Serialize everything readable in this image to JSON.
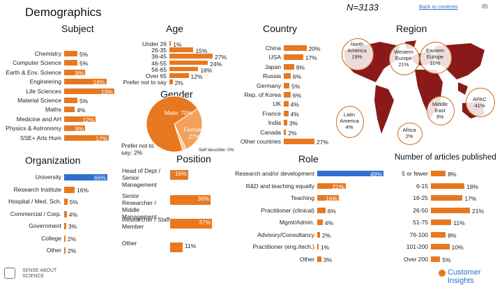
{
  "header": {
    "title": "Demographics",
    "n_label": "N=3133",
    "back_link": "Back to contents",
    "page_number": "85"
  },
  "colors": {
    "bar": "#e8781f",
    "highlight": "#2f6fd0",
    "map_land": "#8a1a1a",
    "pie_main": "#e8781f",
    "pie_secondary": "#f3a05a"
  },
  "chart_data": [
    {
      "id": "subject",
      "type": "bar",
      "orientation": "horizontal",
      "title": "Subject",
      "categories": [
        "Chemistry",
        "Computer Science",
        "Earth & Env. Science",
        "Engineering",
        "Life Sciences",
        "Material Science",
        "Maths",
        "Medicine and AH",
        "Physics & Astronomy",
        "SSE+ Arts Hum"
      ],
      "values": [
        5,
        5,
        8,
        16,
        19,
        5,
        4,
        12,
        8,
        17
      ],
      "labels": [
        "5%",
        "5%",
        "8%",
        "16%",
        "19%",
        "5%",
        "4%",
        "12%",
        "8%",
        "17%"
      ],
      "highlight": -1
    },
    {
      "id": "age",
      "type": "bar",
      "orientation": "horizontal",
      "title": "Age",
      "categories": [
        "Under 26",
        "26-35",
        "36-45",
        "46-55",
        "56-65",
        "Over 65",
        "Prefer not to say"
      ],
      "values": [
        1,
        15,
        27,
        24,
        18,
        12,
        2
      ],
      "labels": [
        "1%",
        "15%",
        "27%",
        "24%",
        "18%",
        "12%",
        "2%"
      ],
      "highlight": -1
    },
    {
      "id": "gender",
      "type": "pie",
      "title": "Gender",
      "slices": [
        {
          "name": "Male",
          "value": 70,
          "label": "Male: 70%"
        },
        {
          "name": "Female",
          "value": 27,
          "label": "Female: 27%"
        },
        {
          "name": "Prefer not to say",
          "value": 2,
          "label": "Prefer not to say: 2%"
        },
        {
          "name": "Self-describe",
          "value": 0,
          "label": "Self describe: 0%"
        }
      ]
    },
    {
      "id": "country",
      "type": "bar",
      "orientation": "horizontal",
      "title": "Country",
      "categories": [
        "China",
        "USA",
        "Japan",
        "Russia",
        "Germany",
        "Rep. of Korea",
        "UK",
        "France",
        "India",
        "Canada",
        "Other countries"
      ],
      "values": [
        20,
        17,
        9,
        6,
        5,
        6,
        4,
        4,
        3,
        2,
        27
      ],
      "labels": [
        "20%",
        "17%",
        "9%",
        "6%",
        "5%",
        "6%",
        "4%",
        "4%",
        "3%",
        "2%",
        "27%"
      ],
      "highlight": -1
    },
    {
      "id": "region",
      "type": "map",
      "title": "Region",
      "regions": [
        {
          "name": "North America",
          "label": "North America",
          "value": "19%"
        },
        {
          "name": "Western Europe",
          "label": "Western Europe",
          "value": "21%"
        },
        {
          "name": "Eastern Europe",
          "label": "Eastern Europe",
          "value": "10%"
        },
        {
          "name": "Middle East",
          "label": "Middle East",
          "value": "3%"
        },
        {
          "name": "APAC",
          "label": "APAC",
          "value": "41%"
        },
        {
          "name": "Latin America",
          "label": "Latin America",
          "value": "4%"
        },
        {
          "name": "Africa",
          "label": "Africa",
          "value": "2%"
        }
      ]
    },
    {
      "id": "organization",
      "type": "bar",
      "orientation": "horizontal",
      "title": "Organization",
      "categories": [
        "University",
        "Research Institute",
        "Hospital / Med. Sch.",
        "Commercial / Corp.",
        "Government",
        "College",
        "Other"
      ],
      "values": [
        66,
        16,
        5,
        4,
        3,
        2,
        2
      ],
      "labels": [
        "66%",
        "16%",
        "5%",
        "4%",
        "3%",
        "2%",
        "2%"
      ],
      "highlight": 0
    },
    {
      "id": "organization_roles",
      "type": "bar",
      "orientation": "horizontal",
      "title": "",
      "categories": [
        "Head of Dept / Senior Management",
        "Senior Researcher / Middle Management",
        "Researcher / Staff Member",
        "Other"
      ],
      "values": [
        16,
        36,
        37,
        11
      ],
      "labels": [
        "16%",
        "36%",
        "37%",
        "11%"
      ],
      "highlight": -1
    },
    {
      "id": "role",
      "type": "bar",
      "orientation": "horizontal",
      "title": "Role",
      "categories": [
        "Research and/or development",
        "R&D and teaching equally",
        "Teaching",
        "Practitioner (clinical)",
        "Mgmt/Admin.",
        "Advisory/Consultancy",
        "Practitioner (eng./tech.)",
        "Other"
      ],
      "values": [
        49,
        21,
        16,
        6,
        4,
        2,
        1,
        3
      ],
      "labels": [
        "49%",
        "21%",
        "16%",
        "6%",
        "4%",
        "2%",
        "1%",
        "3%"
      ],
      "highlight": 0
    },
    {
      "id": "articles",
      "type": "bar",
      "orientation": "horizontal",
      "title": "Number of articles published",
      "categories": [
        "5 or fewer",
        "6-15",
        "16-25",
        "26-50",
        "51-75",
        "76-100",
        "101-200",
        "Over 200"
      ],
      "values": [
        8,
        18,
        17,
        21,
        11,
        8,
        10,
        5
      ],
      "labels": [
        "8%",
        "18%",
        "17%",
        "21%",
        "11%",
        "8%",
        "10%",
        "5%"
      ],
      "highlight": -1
    }
  ],
  "footer": {
    "publisher": "SENSE ABOUT SCIENCE",
    "brand": "Customer Insights"
  }
}
